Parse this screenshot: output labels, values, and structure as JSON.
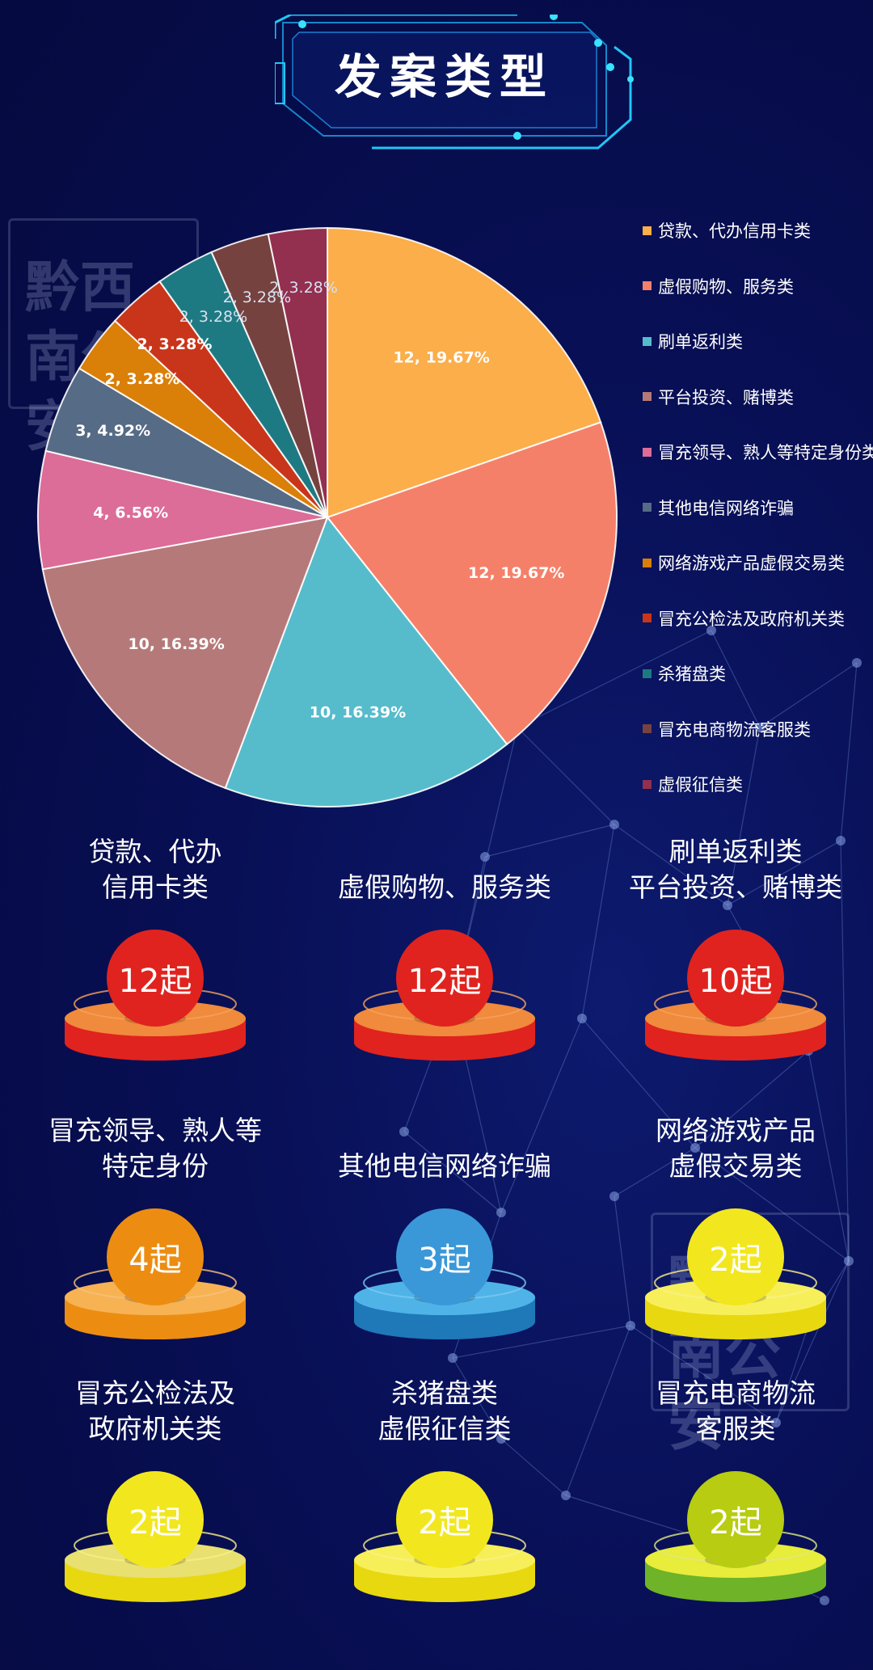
{
  "header": {
    "title": "发案类型"
  },
  "watermark": {
    "text": "黔西南公安"
  },
  "chart_data": {
    "type": "pie",
    "slices": [
      {
        "label": "贷款、代办信用卡类",
        "value": 12,
        "percent": "19.67%",
        "data_label": "12, 19.67%",
        "color": "#fbae4a"
      },
      {
        "label": "虚假购物、服务类",
        "value": 12,
        "percent": "19.67%",
        "data_label": "12, 19.67%",
        "color": "#f5806a"
      },
      {
        "label": "刷单返利类",
        "value": 10,
        "percent": "16.39%",
        "data_label": "10, 16.39%",
        "color": "#56bccc"
      },
      {
        "label": "平台投资、赌博类",
        "value": 10,
        "percent": "16.39%",
        "data_label": "10, 16.39%",
        "color": "#b67979"
      },
      {
        "label": "冒充领导、熟人等特定身份类",
        "value": 4,
        "percent": "6.56%",
        "data_label": "4, 6.56%",
        "color": "#dc6c98"
      },
      {
        "label": "其他电信网络诈骗",
        "value": 3,
        "percent": "4.92%",
        "data_label": "3, 4.92%",
        "color": "#566b85"
      },
      {
        "label": "网络游戏产品虚假交易类",
        "value": 2,
        "percent": "3.28%",
        "data_label": "2, 3.28%",
        "color": "#da7f08"
      },
      {
        "label": "冒充公检法及政府机关类",
        "value": 2,
        "percent": "3.28%",
        "data_label": "2, 3.28%",
        "color": "#c9351a"
      },
      {
        "label": "杀猪盘类",
        "value": 2,
        "percent": "3.28%",
        "data_label": "2, 3.28%",
        "color": "#1e7a82"
      },
      {
        "label": "冒充电商物流客服类",
        "value": 2,
        "percent": "3.28%",
        "data_label": "2, 3.28%",
        "color": "#76423f"
      },
      {
        "label": "虚假征信类",
        "value": 2,
        "percent": "3.28%",
        "data_label": "2, 3.28%",
        "color": "#932f4f"
      }
    ],
    "legend_position": "right"
  },
  "stats": [
    {
      "title": "贷款、代办\n信用卡类",
      "count": "12起",
      "ball": "#e0231f",
      "top": "#f08a3c",
      "side": "#e0231f",
      "ring": "#f5a15a"
    },
    {
      "title": "虚假购物、服务类",
      "count": "12起",
      "ball": "#e0231f",
      "top": "#f08a3c",
      "side": "#e0231f",
      "ring": "#f5a15a"
    },
    {
      "title": "刷单返利类\n平台投资、赌博类",
      "count": "10起",
      "ball": "#e0231f",
      "top": "#f08a3c",
      "side": "#e0231f",
      "ring": "#f5a15a"
    },
    {
      "title": "冒充领导、熟人等\n特定身份",
      "count": "4起",
      "ball": "#ec8d12",
      "top": "#f7b253",
      "side": "#ec8d12",
      "ring": "#f7c07a"
    },
    {
      "title": "其他电信网络诈骗",
      "count": "3起",
      "ball": "#3a98d8",
      "top": "#4fb3e8",
      "side": "#1f78b8",
      "ring": "#7cc8f0"
    },
    {
      "title": "网络游戏产品\n虚假交易类",
      "count": "2起",
      "ball": "#f2e71e",
      "top": "#f7ef5a",
      "side": "#e8d80f",
      "ring": "#f7f08a"
    },
    {
      "title": "冒充公检法及\n政府机关类",
      "count": "2起",
      "ball": "#f2e71e",
      "top": "#e8e070",
      "side": "#e8d80f",
      "ring": "#f7f08a"
    },
    {
      "title": "杀猪盘类\n虚假征信类",
      "count": "2起",
      "ball": "#f2e71e",
      "top": "#f7ef5a",
      "side": "#e8d80f",
      "ring": "#f7f08a"
    },
    {
      "title": "冒充电商物流\n客服类",
      "count": "2起",
      "ball": "#b8cc12",
      "top": "#e8ec3a",
      "side": "#6fb328",
      "ring": "#e0e880"
    }
  ]
}
